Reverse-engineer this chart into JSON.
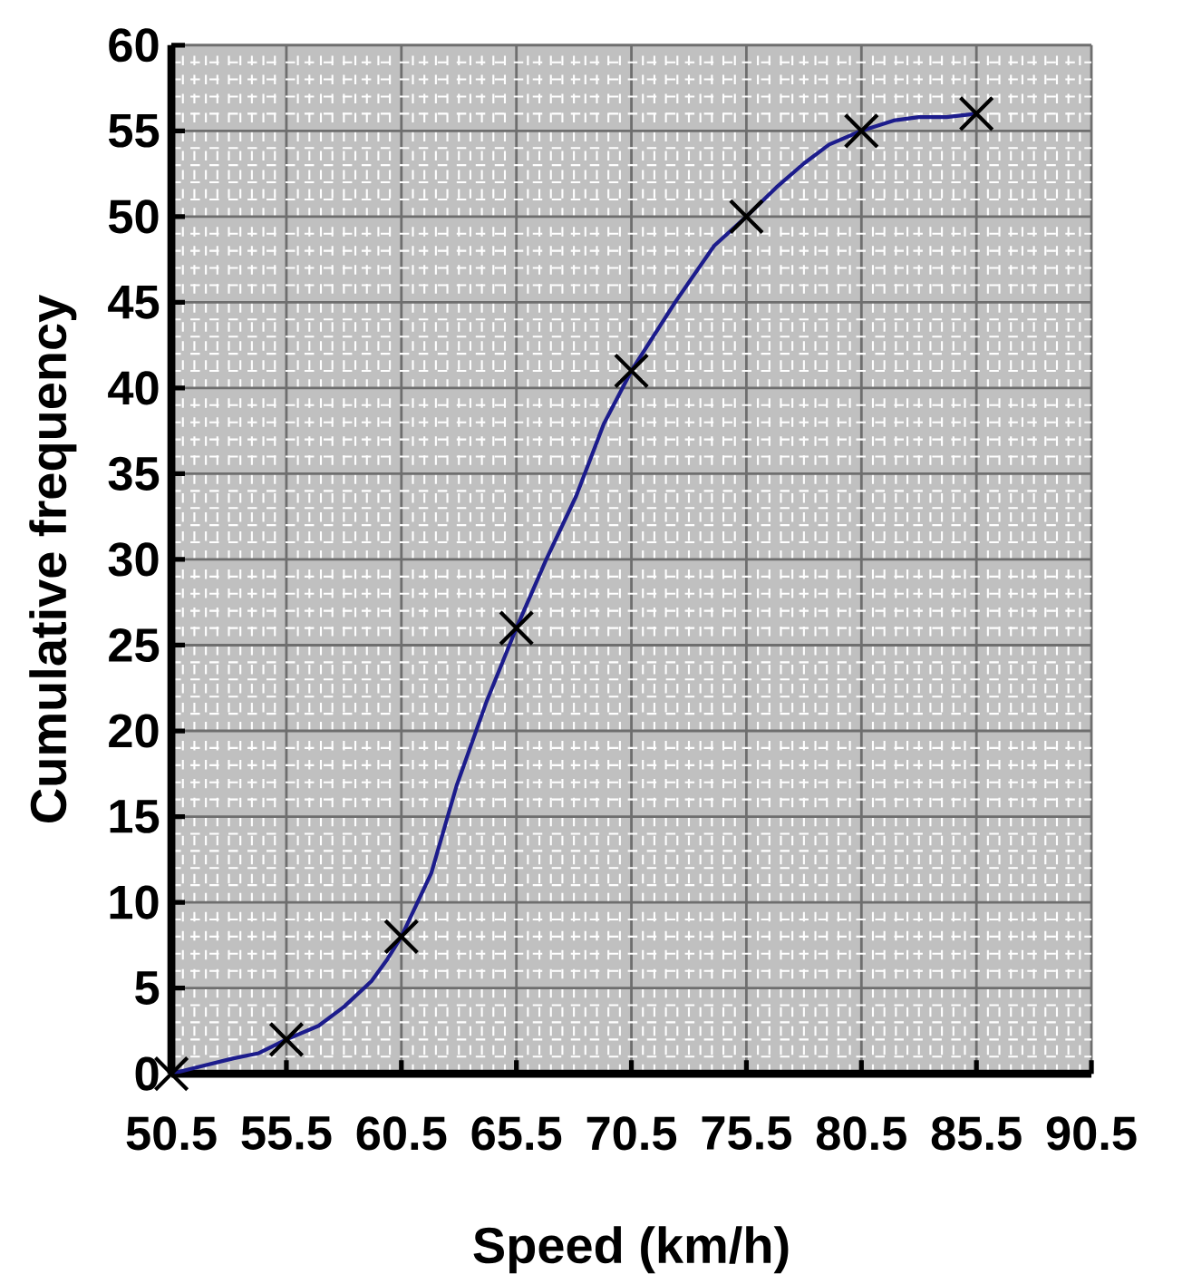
{
  "chart_data": {
    "type": "line",
    "xlabel": "Speed (km/h)",
    "ylabel": "Cumulative frequency",
    "xlim": [
      50.5,
      90.5
    ],
    "ylim": [
      0,
      60
    ],
    "xticks": [
      {
        "value": 50.5,
        "label": "50.5"
      },
      {
        "value": 55.5,
        "label": "55.5"
      },
      {
        "value": 60.5,
        "label": "60.5"
      },
      {
        "value": 65.5,
        "label": "65.5"
      },
      {
        "value": 70.5,
        "label": "70.5"
      },
      {
        "value": 75.5,
        "label": "75.5"
      },
      {
        "value": 80.5,
        "label": "80.5"
      },
      {
        "value": 85.5,
        "label": "85.5"
      },
      {
        "value": 90.5,
        "label": "90.5"
      }
    ],
    "yticks": [
      0,
      5,
      10,
      15,
      20,
      25,
      30,
      35,
      40,
      45,
      50,
      55,
      60
    ],
    "grid": true,
    "series": [
      {
        "type": "line",
        "color": "#1c1c8c",
        "marker": "none",
        "line_style": "solid",
        "x": [
          50.5,
          51.7,
          53.2,
          54.3,
          55.5,
          56.9,
          58.0,
          59.2,
          59.9,
          60.5,
          61.8,
          62.9,
          64.2,
          65.5,
          66.8,
          68.1,
          69.3,
          70.5,
          72.4,
          74.1,
          75.5,
          76.8,
          78.0,
          79.1,
          80.5,
          81.9,
          83.0,
          84.2,
          85.5
        ],
        "values": [
          0,
          0.4,
          0.9,
          1.2,
          2,
          2.8,
          3.9,
          5.4,
          6.7,
          8,
          11.7,
          16.8,
          21.7,
          26,
          30,
          33.7,
          37.9,
          41,
          45,
          48.3,
          50,
          51.7,
          53.1,
          54.2,
          55,
          55.6,
          55.8,
          55.8,
          56
        ]
      },
      {
        "type": "scatter",
        "color": "#000000",
        "marker": "cross",
        "x": [
          50.5,
          55.5,
          60.5,
          65.5,
          70.5,
          75.5,
          80.5,
          85.5
        ],
        "values": [
          0,
          2,
          8,
          26,
          41,
          50,
          55,
          56
        ]
      }
    ]
  }
}
